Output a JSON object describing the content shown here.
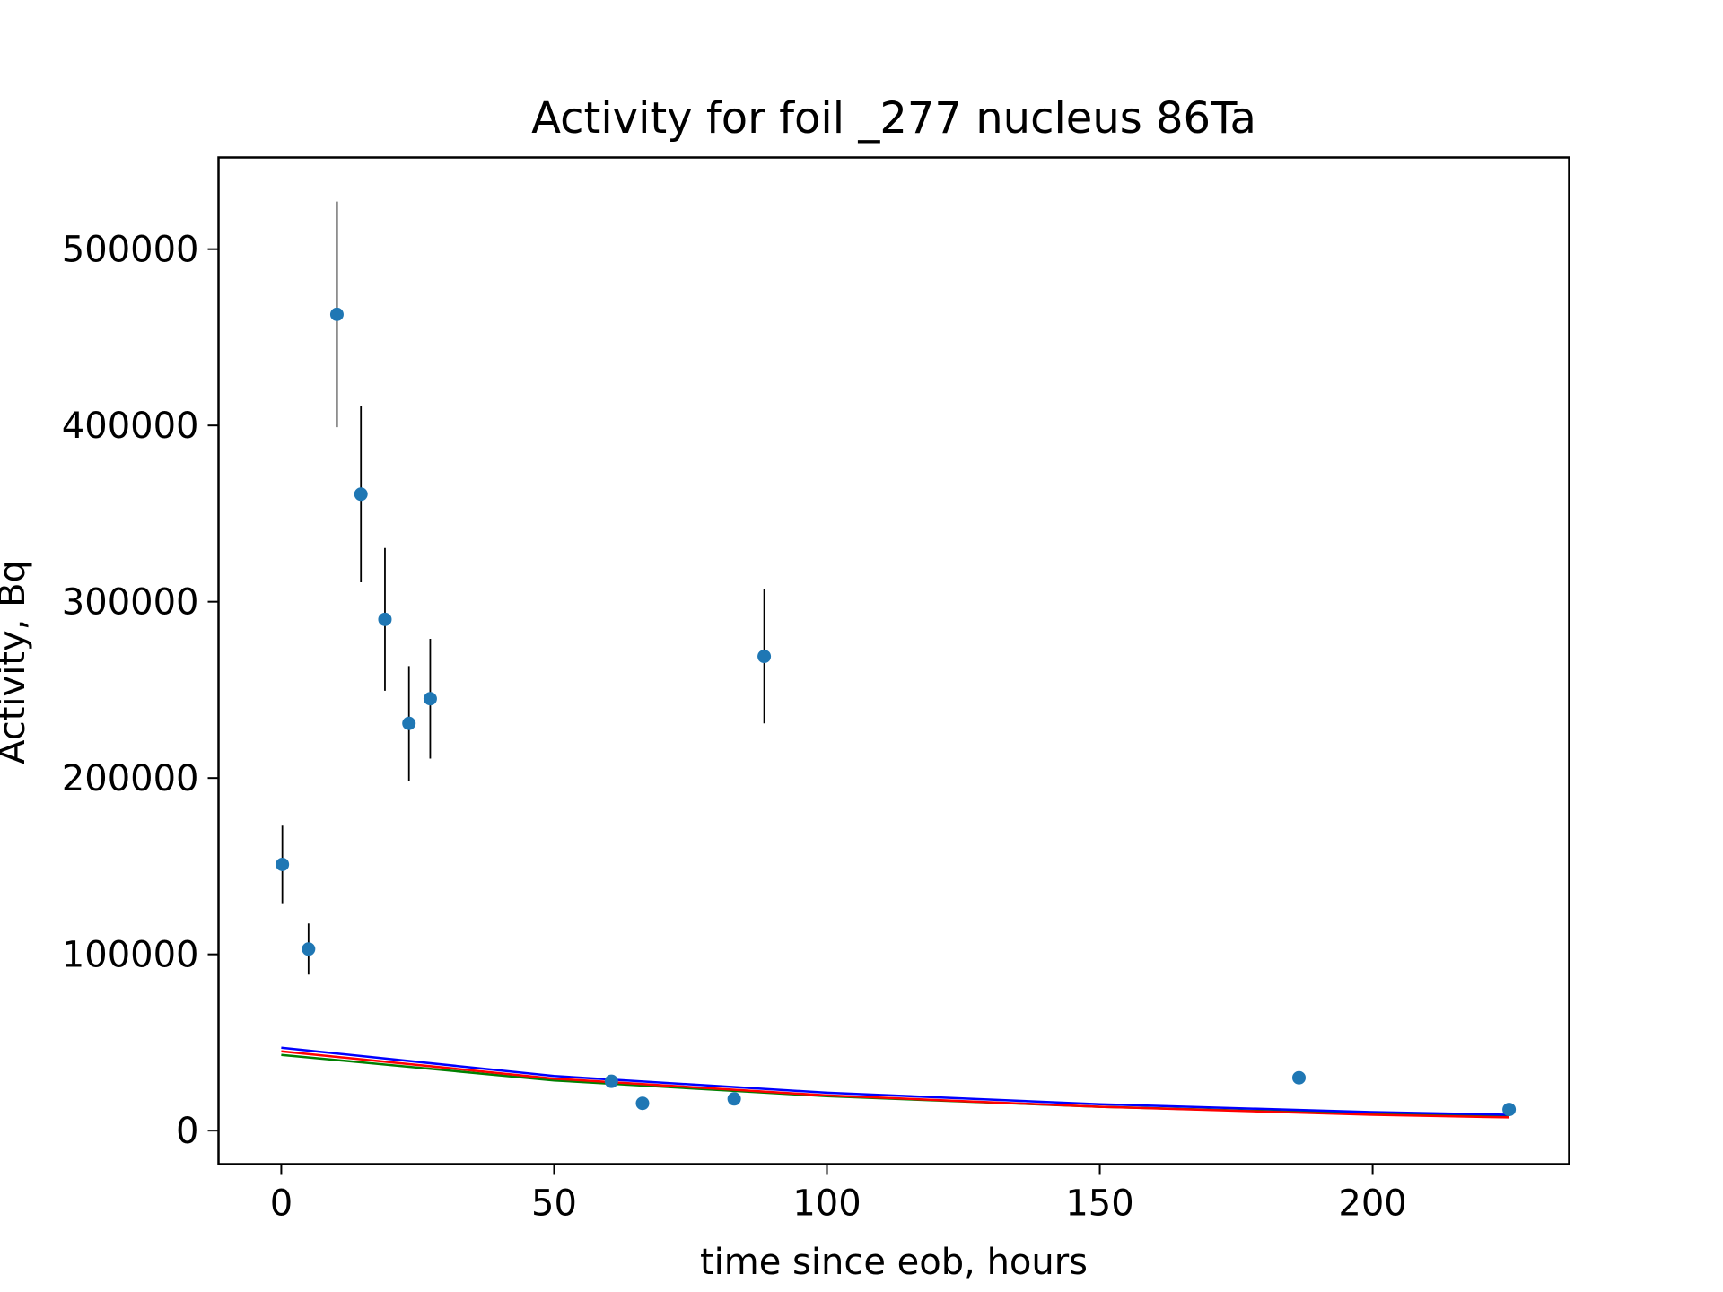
{
  "chart_data": {
    "type": "scatter",
    "title": "Activity for foil _277 nucleus 86Ta",
    "xlabel": "time since eob, hours",
    "ylabel": "Activity, Bq",
    "xlim": [
      -11.5,
      236
    ],
    "ylim": [
      -19000,
      552000
    ],
    "xticks": [
      0,
      50,
      100,
      150,
      200
    ],
    "yticks": [
      0,
      100000,
      200000,
      300000,
      400000,
      500000
    ],
    "grid": false,
    "legend": "none",
    "points": [
      {
        "x": 0.2,
        "y": 151000,
        "err": 22000
      },
      {
        "x": 5.0,
        "y": 103000,
        "err": 14500
      },
      {
        "x": 10.2,
        "y": 463000,
        "err": 64000
      },
      {
        "x": 14.6,
        "y": 361000,
        "err": 50000
      },
      {
        "x": 19.0,
        "y": 290000,
        "err": 40500
      },
      {
        "x": 23.4,
        "y": 231000,
        "err": 32500
      },
      {
        "x": 27.3,
        "y": 245000,
        "err": 34000
      },
      {
        "x": 60.5,
        "y": 28000,
        "err": 2500
      },
      {
        "x": 66.2,
        "y": 15500,
        "err": 1500
      },
      {
        "x": 83.0,
        "y": 18000,
        "err": 1500
      },
      {
        "x": 88.5,
        "y": 269000,
        "err": 38000
      },
      {
        "x": 186.5,
        "y": 30000,
        "err": 3000
      },
      {
        "x": 225.0,
        "y": 12000,
        "err": 1500
      }
    ],
    "curves": [
      {
        "color": "#008000",
        "x": [
          0,
          50,
          100,
          150,
          200,
          225
        ],
        "y": [
          43000,
          28500,
          19500,
          13500,
          9500,
          8000
        ]
      },
      {
        "color": "#ff0000",
        "x": [
          0,
          50,
          100,
          150,
          200,
          225
        ],
        "y": [
          45000,
          29500,
          20000,
          13500,
          9000,
          7500
        ]
      },
      {
        "color": "#0000ff",
        "x": [
          0,
          50,
          100,
          150,
          200,
          225
        ],
        "y": [
          47000,
          31000,
          21500,
          15000,
          10500,
          9000
        ]
      }
    ],
    "colors": {
      "marker": "#1f77b4",
      "errorbar": "#000000",
      "axes": "#000000"
    }
  }
}
